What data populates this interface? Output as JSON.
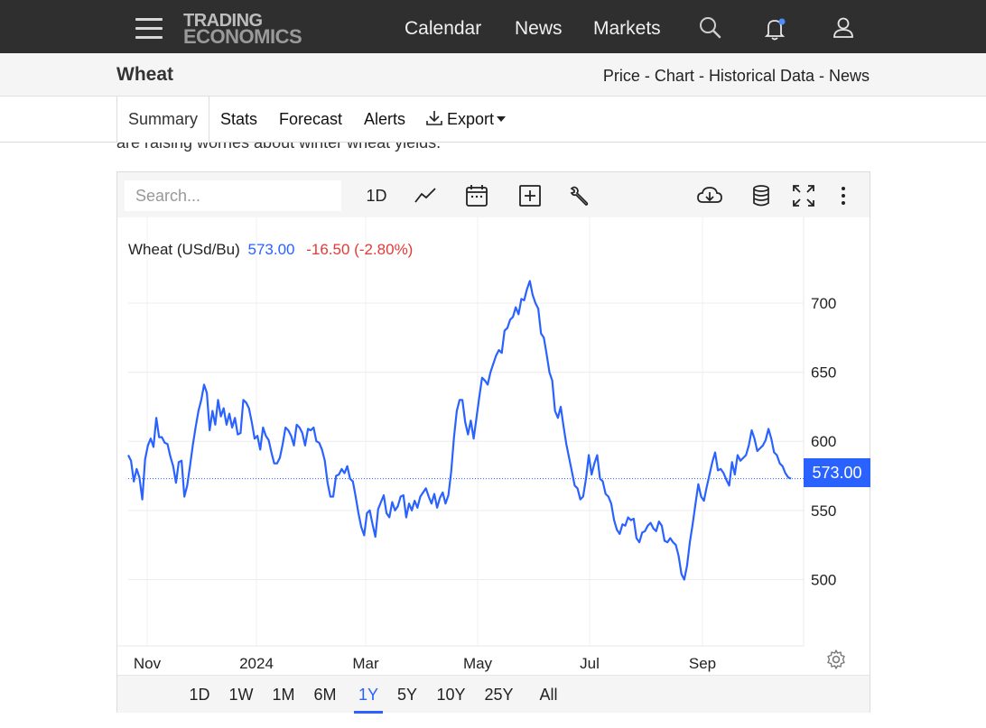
{
  "nav": {
    "logo_line1": "TRADING",
    "logo_line2": "ECONOMICS",
    "links": [
      "Calendar",
      "News",
      "Markets"
    ]
  },
  "title": {
    "name": "Wheat",
    "link_price": "Price",
    "link_chart": "Chart",
    "link_historical": "Historical Data",
    "link_news": "News",
    "sep": " - "
  },
  "tabs": {
    "summary": "Summary",
    "stats": "Stats",
    "forecast": "Forecast",
    "alerts": "Alerts",
    "export": "Export"
  },
  "article_snippet": "are raising worries about winter wheat yields.",
  "chart_toolbar": {
    "search_placeholder": "Search...",
    "interval": "1D"
  },
  "legend": {
    "name": "Wheat (USd/Bu)",
    "price": "573.00",
    "change": "-16.50 (-2.80%)"
  },
  "last_price_tag": "573.00",
  "ranges": [
    "1D",
    "1W",
    "1M",
    "6M",
    "1Y",
    "5Y",
    "10Y",
    "25Y",
    "All"
  ],
  "active_range": "1Y",
  "colors": {
    "line": "#2962ff",
    "change_negative": "#e53935",
    "price_blue": "#2962ff"
  },
  "chart_data": {
    "type": "line",
    "title": "Wheat (USd/Bu)",
    "x_ticks": [
      "Nov",
      "2024",
      "Mar",
      "May",
      "Jul",
      "Sep"
    ],
    "y_ticks": [
      500,
      550,
      600,
      650,
      700
    ],
    "ylim": [
      452,
      762
    ],
    "last_value": 573,
    "grid": true,
    "series": [
      {
        "name": "Wheat (USd/Bu)",
        "values": [
          590,
          586,
          571,
          580,
          574,
          558,
          587,
          597,
          602,
          596,
          617,
          603,
          603,
          599,
          598,
          589,
          582,
          570,
          585,
          586,
          560,
          568,
          582,
          597,
          610,
          622,
          630,
          641,
          635,
          608,
          622,
          612,
          630,
          618,
          624,
          612,
          620,
          610,
          617,
          605,
          606,
          630,
          628,
          624,
          614,
          602,
          604,
          594,
          610,
          604,
          601,
          592,
          584,
          584,
          588,
          598,
          610,
          608,
          604,
          597,
          612,
          610,
          606,
          597,
          609,
          608,
          610,
          600,
          599,
          594,
          586,
          570,
          560,
          560,
          575,
          576,
          580,
          577,
          582,
          573,
          571,
          560,
          548,
          538,
          532,
          548,
          550,
          540,
          531,
          551,
          556,
          561,
          548,
          545,
          556,
          550,
          553,
          560,
          561,
          545,
          555,
          550,
          557,
          552,
          560,
          563,
          566,
          560,
          555,
          562,
          552,
          559,
          563,
          555,
          561,
          578,
          603,
          622,
          630,
          630,
          614,
          605,
          615,
          602,
          617,
          632,
          646,
          644,
          641,
          650,
          656,
          662,
          666,
          664,
          680,
          682,
          688,
          690,
          697,
          692,
          703,
          702,
          710,
          716,
          706,
          700,
          696,
          678,
          675,
          663,
          650,
          644,
          622,
          617,
          625,
          611,
          598,
          588,
          578,
          568,
          566,
          558,
          560,
          573,
          590,
          576,
          584,
          590,
          573,
          571,
          562,
          560,
          555,
          543,
          536,
          533,
          540,
          539,
          545,
          543,
          544,
          530,
          527,
          534,
          535,
          539,
          541,
          537,
          535,
          542,
          539,
          528,
          527,
          530,
          527,
          525,
          517,
          504,
          500,
          510,
          527,
          540,
          555,
          569,
          560,
          557,
          567,
          576,
          585,
          592,
          579,
          580,
          577,
          572,
          568,
          585,
          576,
          590,
          586,
          588,
          590,
          597,
          608,
          602,
          593,
          595,
          597,
          601,
          609,
          602,
          592,
          590,
          584,
          582,
          577,
          574,
          573
        ]
      }
    ]
  }
}
